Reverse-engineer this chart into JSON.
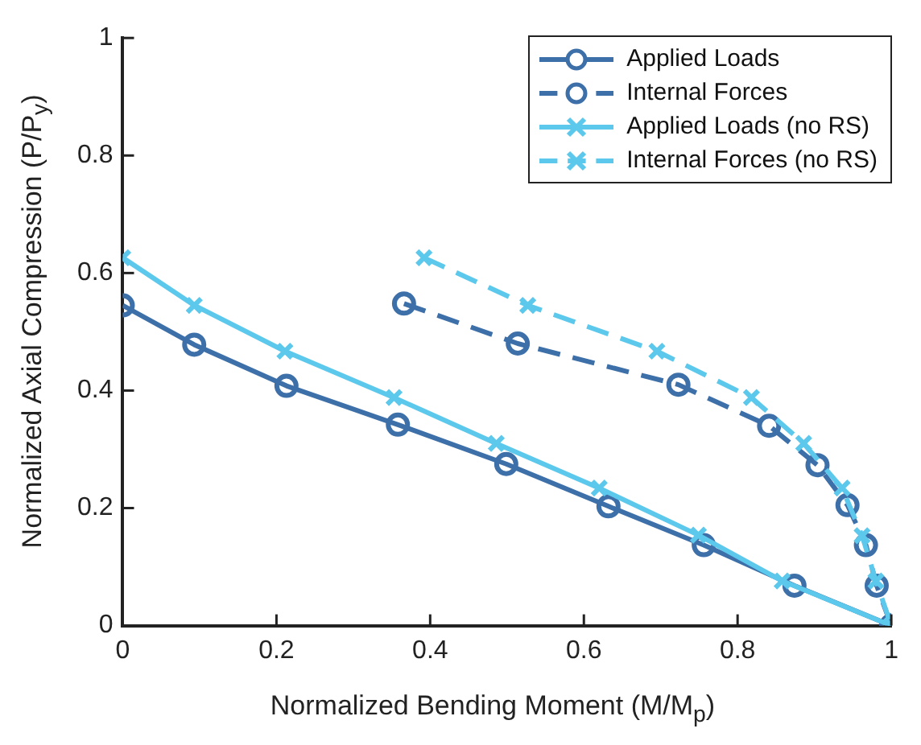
{
  "chart_data": {
    "type": "line",
    "xlabel": "Normalized Bending Moment (M/M$_{p}$)",
    "ylabel": "Normalized Axial Compression (P/P$_{y}$)",
    "xlim": [
      0,
      1
    ],
    "xticks": [
      0,
      0.2,
      0.4,
      0.6,
      0.8,
      1
    ],
    "ylim": [
      0,
      1
    ],
    "yticks": [
      0,
      0.2,
      0.4,
      0.6,
      0.8,
      1
    ],
    "grid": false,
    "legend": "top right",
    "series": [
      {
        "name": "Applied Loads",
        "color": "#3d6fa8",
        "marker": "circle",
        "line_style": "solid",
        "x": [
          0,
          0.093,
          0.213,
          0.358,
          0.499,
          0.632,
          0.756,
          0.874,
          1
        ],
        "values": [
          0.545,
          0.478,
          0.408,
          0.342,
          0.275,
          0.203,
          0.137,
          0.068,
          0
        ]
      },
      {
        "name": "Internal Forces",
        "color": "#3d6fa8",
        "marker": "circle",
        "line_style": "dashed",
        "x": [
          0.366,
          0.514,
          0.723,
          0.841,
          0.904,
          0.943,
          0.967,
          0.981,
          1
        ],
        "values": [
          0.548,
          0.48,
          0.41,
          0.34,
          0.273,
          0.205,
          0.137,
          0.068,
          0
        ]
      },
      {
        "name": "Applied Loads (no RS)",
        "color": "#5bc8ec",
        "marker": "cross",
        "line_style": "solid",
        "x": [
          0,
          0.093,
          0.211,
          0.353,
          0.486,
          0.62,
          0.749,
          0.858,
          1
        ],
        "values": [
          0.626,
          0.545,
          0.467,
          0.388,
          0.31,
          0.234,
          0.154,
          0.076,
          0
        ]
      },
      {
        "name": "Internal Forces (no RS)",
        "color": "#5bc8ec",
        "marker": "cross",
        "line_style": "dashed",
        "x": [
          0.392,
          0.527,
          0.695,
          0.818,
          0.886,
          0.936,
          0.962,
          0.98,
          1
        ],
        "values": [
          0.626,
          0.545,
          0.467,
          0.388,
          0.31,
          0.234,
          0.153,
          0.076,
          0
        ]
      }
    ]
  }
}
